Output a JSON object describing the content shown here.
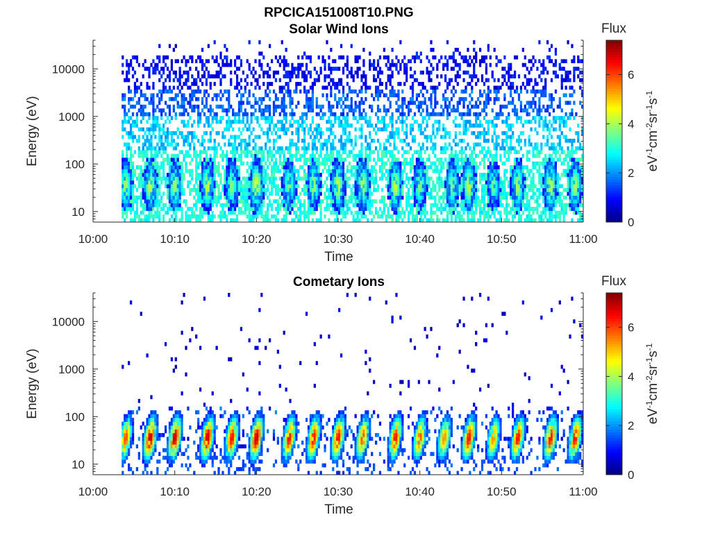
{
  "figure_title": "RPCICA151008T10.PNG",
  "chart_data": [
    {
      "type": "heatmap",
      "title": "Solar Wind Ions",
      "xlabel": "Time",
      "ylabel": "Energy (eV)",
      "x_ticks": [
        "10:00",
        "10:10",
        "10:20",
        "10:30",
        "10:40",
        "10:50",
        "11:00"
      ],
      "xlim": [
        "10:00",
        "11:00"
      ],
      "y_scale": "log",
      "y_ticks": [
        10,
        100,
        1000,
        10000
      ],
      "y_tick_labels": [
        "10",
        "100",
        "1000",
        "10000"
      ],
      "ylim": [
        6,
        40000
      ],
      "data_start": "10:03",
      "colorbar": {
        "label_top": "Flux",
        "range": [
          0,
          7.4
        ],
        "ticks": [
          0,
          2,
          4,
          6
        ],
        "tick_labels": [
          "0",
          "2",
          "4",
          "6"
        ],
        "colormap": "jet"
      },
      "bursts": [
        {
          "t": "10:04",
          "peak": 4.0
        },
        {
          "t": "10:07",
          "peak": 4.3
        },
        {
          "t": "10:10",
          "peak": 4.0
        },
        {
          "t": "10:14",
          "peak": 4.3
        },
        {
          "t": "10:17",
          "peak": 3.8
        },
        {
          "t": "10:20",
          "peak": 4.6
        },
        {
          "t": "10:24",
          "peak": 3.8
        },
        {
          "t": "10:27",
          "peak": 4.0
        },
        {
          "t": "10:30",
          "peak": 4.3
        },
        {
          "t": "10:33",
          "peak": 4.2
        },
        {
          "t": "10:37",
          "peak": 4.3
        },
        {
          "t": "10:40",
          "peak": 3.8
        },
        {
          "t": "10:44",
          "peak": 3.8
        },
        {
          "t": "10:46",
          "peak": 4.3
        },
        {
          "t": "10:49",
          "peak": 3.6
        },
        {
          "t": "10:52",
          "peak": 4.1
        },
        {
          "t": "10:56",
          "peak": 4.3
        },
        {
          "t": "10:59",
          "peak": 4.1
        }
      ]
    },
    {
      "type": "heatmap",
      "title": "Cometary Ions",
      "xlabel": "Time",
      "ylabel": "Energy (eV)",
      "x_ticks": [
        "10:00",
        "10:10",
        "10:20",
        "10:30",
        "10:40",
        "10:50",
        "11:00"
      ],
      "xlim": [
        "10:00",
        "11:00"
      ],
      "y_scale": "log",
      "y_ticks": [
        10,
        100,
        1000,
        10000
      ],
      "y_tick_labels": [
        "10",
        "100",
        "1000",
        "10000"
      ],
      "ylim": [
        6,
        40000
      ],
      "data_start": "10:03",
      "colorbar": {
        "label_top": "Flux",
        "range": [
          0,
          7.4
        ],
        "ticks": [
          0,
          2,
          4,
          6
        ],
        "tick_labels": [
          "0",
          "2",
          "4",
          "6"
        ],
        "colormap": "jet"
      },
      "bursts": [
        {
          "t": "10:04",
          "peak": 6.0
        },
        {
          "t": "10:07",
          "peak": 7.0
        },
        {
          "t": "10:10",
          "peak": 7.0
        },
        {
          "t": "10:14",
          "peak": 7.0
        },
        {
          "t": "10:17",
          "peak": 6.5
        },
        {
          "t": "10:20",
          "peak": 7.0
        },
        {
          "t": "10:24",
          "peak": 6.5
        },
        {
          "t": "10:27",
          "peak": 6.5
        },
        {
          "t": "10:30",
          "peak": 6.5
        },
        {
          "t": "10:33",
          "peak": 6.0
        },
        {
          "t": "10:37",
          "peak": 6.5
        },
        {
          "t": "10:40",
          "peak": 6.0
        },
        {
          "t": "10:43",
          "peak": 5.5
        },
        {
          "t": "10:46",
          "peak": 6.5
        },
        {
          "t": "10:49",
          "peak": 5.5
        },
        {
          "t": "10:52",
          "peak": 6.5
        },
        {
          "t": "10:56",
          "peak": 6.5
        },
        {
          "t": "10:59",
          "peak": 6.5
        }
      ]
    }
  ],
  "colorbar_unit_parts": [
    "eV",
    "-1",
    "cm",
    "-2",
    "sr",
    "-1",
    "s",
    "-1"
  ]
}
